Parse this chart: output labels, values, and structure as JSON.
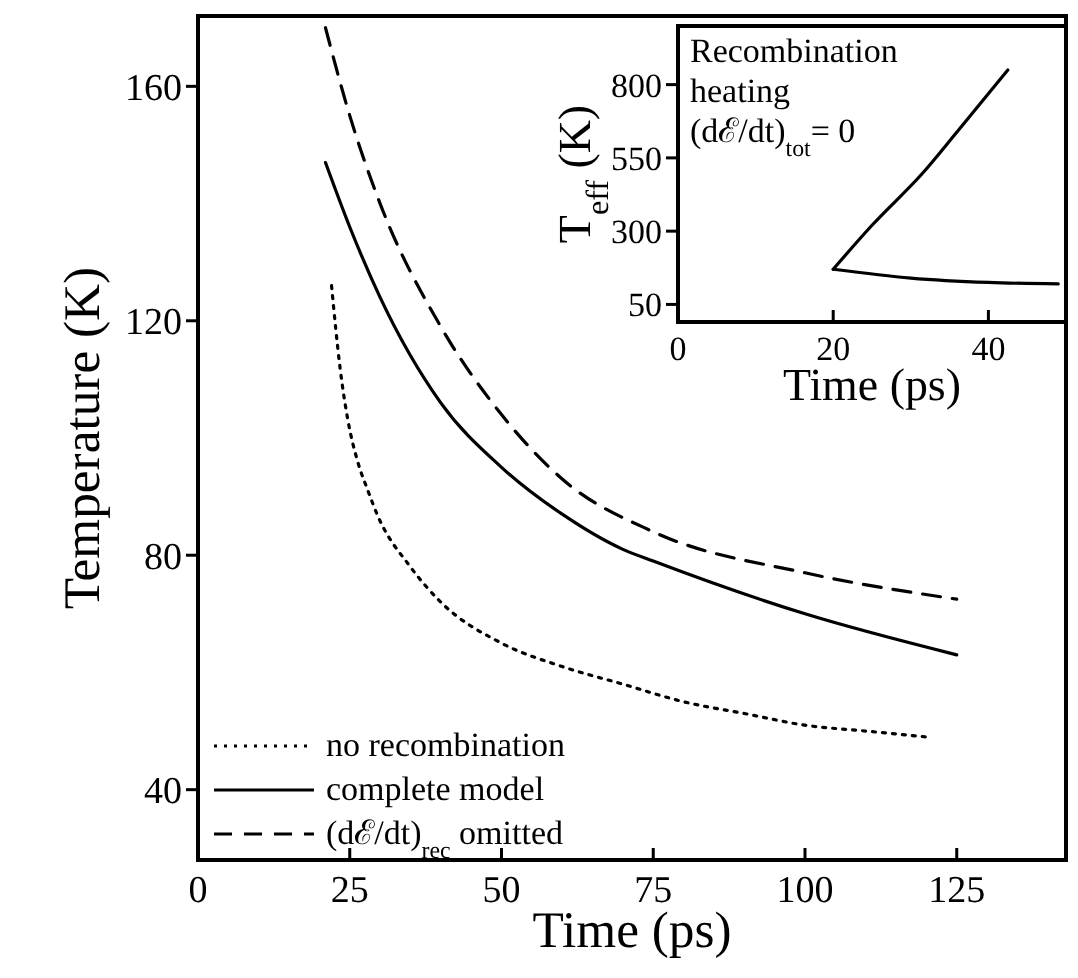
{
  "chart_data": [
    {
      "type": "line",
      "xlabel": "Time (ps)",
      "ylabel": "Temperature (K)",
      "xlim": [
        0,
        143
      ],
      "ylim": [
        28,
        172
      ],
      "xticks": [
        0,
        25,
        50,
        75,
        100,
        125
      ],
      "yticks": [
        40,
        80,
        120,
        160
      ],
      "legend": "bottom left",
      "series": [
        {
          "name": "no recombination",
          "color": "#000000",
          "line_style": "dotted",
          "x": [
            22,
            23.4,
            24.7,
            26.3,
            28,
            29.5,
            35,
            40,
            50,
            60,
            70,
            80,
            90,
            100,
            110,
            120
          ],
          "values": [
            126,
            112,
            103,
            96,
            91,
            87,
            78,
            72,
            65,
            61,
            58,
            55,
            53,
            51,
            50,
            49
          ]
        },
        {
          "name": "complete model",
          "color": "#000000",
          "line_style": "solid",
          "x": [
            21,
            25,
            30,
            40,
            50,
            60,
            70,
            75,
            100,
            125
          ],
          "values": [
            147,
            136,
            124,
            106,
            95,
            87,
            81,
            79,
            70,
            63
          ]
        },
        {
          "name": "(dℰ/dt)$_{rec}$ omitted",
          "color": "#000000",
          "line_style": "dashed",
          "x": [
            21,
            25,
            30,
            40,
            50,
            60,
            75,
            100,
            125
          ],
          "values": [
            170,
            155,
            140,
            119,
            104,
            93,
            84,
            77,
            72.5
          ]
        }
      ]
    },
    {
      "type": "line",
      "xlabel": "Time (ps)",
      "ylabel": "T$_{eff}$ (K)",
      "xlim": [
        0,
        50
      ],
      "ylim": [
        -10,
        1000
      ],
      "xticks": [
        0,
        20,
        40
      ],
      "yticks": [
        50,
        300,
        550,
        800
      ],
      "annotations": [
        "Recombination",
        "heating",
        "(dℰ/dt)$_{tot}$= 0"
      ],
      "series": [
        {
          "color": "#000000",
          "line_style": "solid",
          "x": [
            20,
            25,
            31.6,
            36,
            42.5
          ],
          "values": [
            170,
            320,
            500,
            640,
            850
          ]
        },
        {
          "color": "#000000",
          "line_style": "solid",
          "x": [
            20,
            30,
            40,
            49
          ],
          "values": [
            170,
            140,
            125,
            120
          ]
        }
      ]
    }
  ]
}
